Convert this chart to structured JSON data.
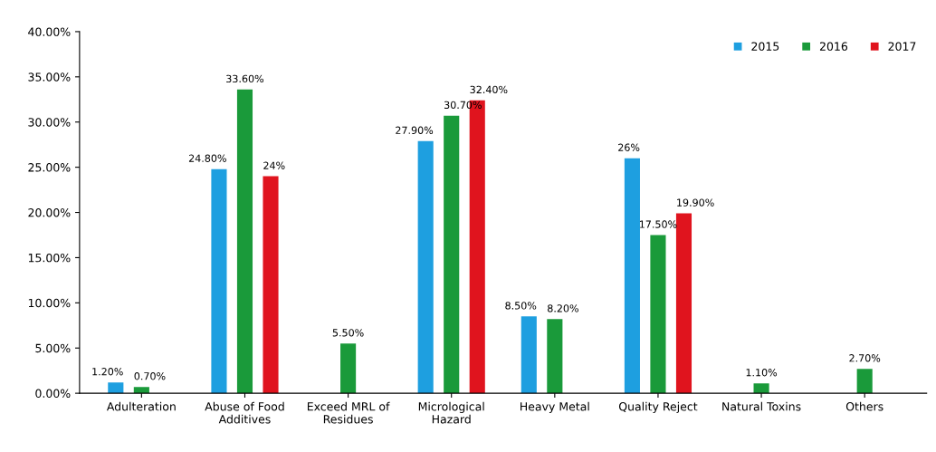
{
  "chart_data": {
    "type": "bar",
    "categories": [
      "Adulteration",
      "Abuse of Food\nAdditives",
      "Exceed MRL of\nResidues",
      "Micrological\nHazard",
      "Heavy Metal",
      "Quality Reject",
      "Natural Toxins",
      "Others"
    ],
    "series": [
      {
        "name": "2015",
        "color": "#1e9fe0",
        "values": [
          1.2,
          24.8,
          null,
          27.9,
          8.5,
          26,
          null,
          null
        ],
        "value_labels": [
          "1.20%",
          "24.80%",
          null,
          "27.90%",
          "8.50%",
          "26%",
          null,
          null
        ]
      },
      {
        "name": "2016",
        "color": "#1a9a3a",
        "values": [
          0.7,
          33.6,
          5.5,
          30.7,
          8.2,
          17.5,
          1.1,
          2.7
        ],
        "value_labels": [
          "0.70%",
          "33.60%",
          "5.50%",
          "30.70%",
          "8.20%",
          "17.50%",
          "1.10%",
          "2.70%"
        ]
      },
      {
        "name": "2017",
        "color": "#e0141e",
        "values": [
          null,
          24,
          null,
          32.4,
          null,
          19.9,
          null,
          null
        ],
        "value_labels": [
          null,
          "24%",
          null,
          "32.40%",
          null,
          "19.90%",
          null,
          null
        ]
      }
    ],
    "ylim": [
      0,
      40
    ],
    "yticks": [
      {
        "value": 0,
        "label": "0.00%"
      },
      {
        "value": 5,
        "label": "5.00%"
      },
      {
        "value": 10,
        "label": "10.00%"
      },
      {
        "value": 15,
        "label": "15.00%"
      },
      {
        "value": 20,
        "label": "20.00%"
      },
      {
        "value": 25,
        "label": "25.00%"
      },
      {
        "value": 30,
        "label": "30.00%"
      },
      {
        "value": 35,
        "label": "35.00%"
      },
      {
        "value": 40,
        "label": "40.00%"
      }
    ],
    "legend": "top right"
  }
}
